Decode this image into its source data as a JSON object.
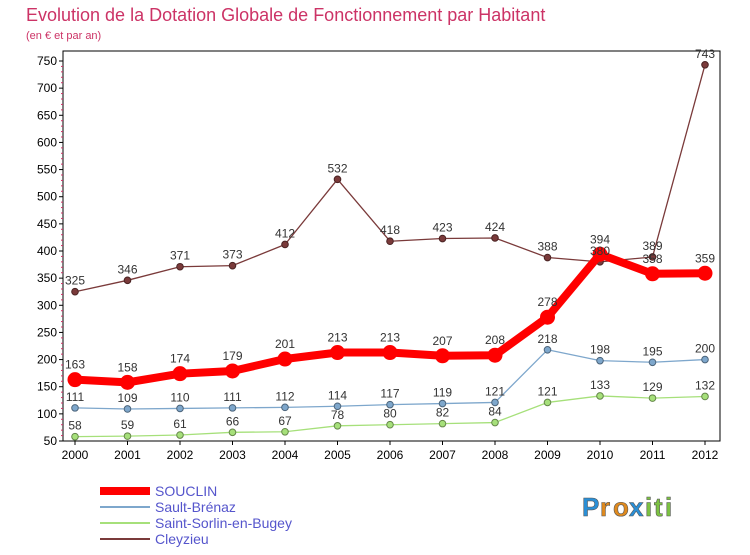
{
  "chart_data": {
    "type": "line",
    "title": "Evolution de la Dotation Globale de Fonctionnement par Habitant",
    "subtitle": "(en € et par an)",
    "xlabel": "",
    "ylabel": "",
    "x": [
      "2000",
      "2001",
      "2002",
      "2003",
      "2004",
      "2005",
      "2006",
      "2007",
      "2008",
      "2009",
      "2010",
      "2011",
      "2012"
    ],
    "ylim": [
      50,
      750
    ],
    "yticks": [
      50,
      100,
      150,
      200,
      250,
      300,
      350,
      400,
      450,
      500,
      550,
      600,
      650,
      700,
      750
    ],
    "grid": false,
    "legend_position": "bottom-left",
    "series": [
      {
        "name": "SOUCLIN",
        "color": "#ff0000",
        "values": [
          163,
          158,
          174,
          179,
          201,
          213,
          213,
          207,
          208,
          278,
          394,
          358,
          359
        ]
      },
      {
        "name": "Sault-Brénaz",
        "color": "#7ea7cc",
        "values": [
          111,
          109,
          110,
          111,
          112,
          114,
          117,
          119,
          121,
          218,
          198,
          195,
          200
        ]
      },
      {
        "name": "Saint-Sorlin-en-Bugey",
        "color": "#a6e07a",
        "values": [
          58,
          59,
          61,
          66,
          67,
          78,
          80,
          82,
          84,
          121,
          133,
          129,
          132
        ]
      },
      {
        "name": "Cleyzieu",
        "color": "#7a3a3a",
        "values": [
          325,
          346,
          371,
          373,
          412,
          532,
          418,
          423,
          424,
          388,
          380,
          389,
          743
        ]
      }
    ]
  },
  "colors": {
    "title": "#cc3366",
    "legend_text": "#5555cc",
    "axis": "#000000",
    "background": "#ffffff"
  },
  "brand": {
    "letters": [
      "P",
      "r",
      "o",
      "x",
      "i",
      "t",
      "i"
    ],
    "colors": [
      "#2a8fd6",
      "#e08a1e",
      "#e08a1e",
      "#2a8fd6",
      "#7cc242",
      "#7cc242",
      "#7cc242"
    ]
  }
}
